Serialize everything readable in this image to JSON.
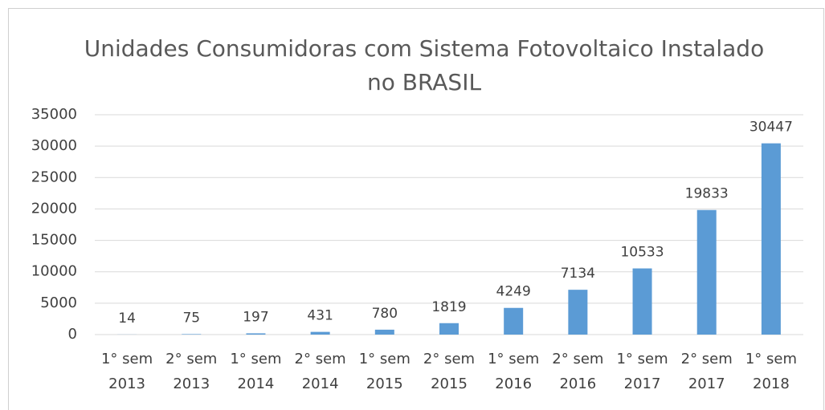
{
  "chart_data": {
    "type": "bar",
    "title": "Unidades Consumidoras com Sistema Fotovoltaico Instalado no BRASIL",
    "categories": [
      "1° sem 2013",
      "2° sem 2013",
      "1° sem 2014",
      "2° sem 2014",
      "1° sem 2015",
      "2° sem 2015",
      "1° sem 2016",
      "2° sem 2016",
      "1° sem 2017",
      "2° sem 2017",
      "1° sem 2018"
    ],
    "values": [
      14,
      75,
      197,
      431,
      780,
      1819,
      4249,
      7134,
      10533,
      19833,
      30447
    ],
    "color": "#5b9bd5",
    "ylim": [
      0,
      35000
    ],
    "yticks": [
      0,
      5000,
      10000,
      15000,
      20000,
      25000,
      30000,
      35000
    ],
    "grid": true
  }
}
